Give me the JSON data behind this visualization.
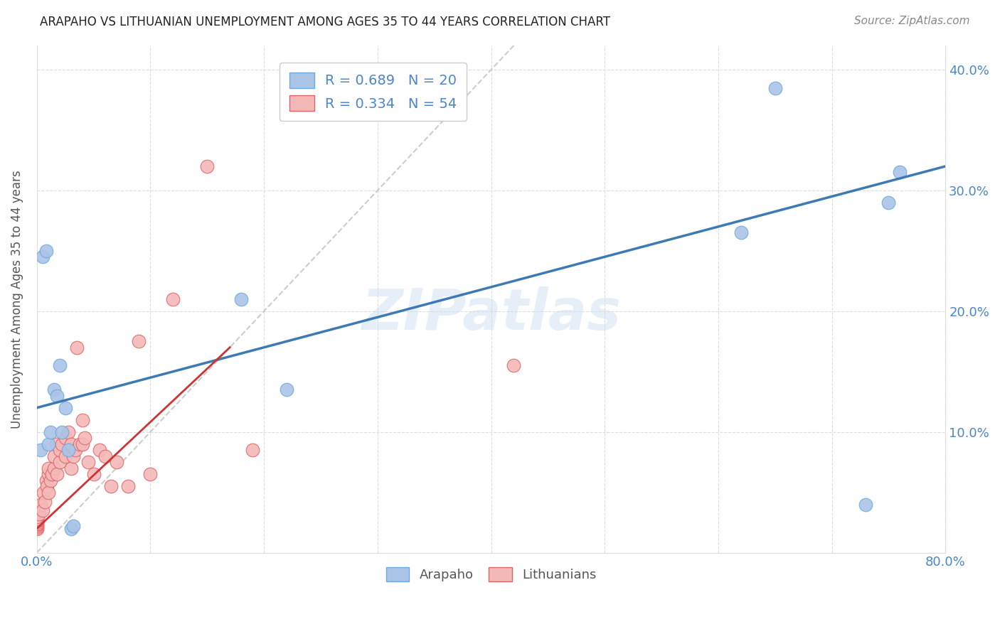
{
  "title": "ARAPAHO VS LITHUANIAN UNEMPLOYMENT AMONG AGES 35 TO 44 YEARS CORRELATION CHART",
  "source": "Source: ZipAtlas.com",
  "ylabel": "Unemployment Among Ages 35 to 44 years",
  "xlim": [
    0.0,
    0.8
  ],
  "ylim": [
    0.0,
    0.42
  ],
  "x_ticks": [
    0.0,
    0.1,
    0.2,
    0.3,
    0.4,
    0.5,
    0.6,
    0.7,
    0.8
  ],
  "y_ticks": [
    0.0,
    0.1,
    0.2,
    0.3,
    0.4
  ],
  "arapaho_color": "#aac4e8",
  "arapaho_edge_color": "#6fa8dc",
  "lithuanian_color": "#f4b8b8",
  "lithuanian_edge_color": "#e06666",
  "arapaho_line_color": "#3d7ab5",
  "lithuanian_line_color": "#cc3333",
  "diagonal_color": "#cccccc",
  "watermark": "ZIPatlas",
  "arapaho_R": 0.689,
  "arapaho_N": 20,
  "lithuanian_R": 0.334,
  "lithuanian_N": 54,
  "arapaho_x": [
    0.003,
    0.005,
    0.008,
    0.01,
    0.012,
    0.015,
    0.018,
    0.02,
    0.022,
    0.025,
    0.028,
    0.03,
    0.032,
    0.18,
    0.22,
    0.62,
    0.65,
    0.73,
    0.75,
    0.76
  ],
  "arapaho_y": [
    0.085,
    0.245,
    0.25,
    0.09,
    0.1,
    0.135,
    0.13,
    0.155,
    0.1,
    0.12,
    0.085,
    0.02,
    0.022,
    0.21,
    0.135,
    0.265,
    0.385,
    0.04,
    0.29,
    0.315
  ],
  "lithuanian_x": [
    0.0,
    0.0,
    0.0,
    0.0,
    0.0,
    0.0,
    0.0,
    0.0,
    0.0,
    0.0,
    0.002,
    0.003,
    0.005,
    0.006,
    0.007,
    0.008,
    0.009,
    0.01,
    0.01,
    0.01,
    0.012,
    0.013,
    0.015,
    0.015,
    0.017,
    0.018,
    0.02,
    0.02,
    0.022,
    0.025,
    0.025,
    0.028,
    0.03,
    0.03,
    0.032,
    0.034,
    0.035,
    0.038,
    0.04,
    0.04,
    0.042,
    0.045,
    0.05,
    0.055,
    0.06,
    0.065,
    0.07,
    0.08,
    0.09,
    0.1,
    0.12,
    0.15,
    0.19,
    0.42
  ],
  "lithuanian_y": [
    0.02,
    0.021,
    0.022,
    0.023,
    0.024,
    0.025,
    0.026,
    0.027,
    0.028,
    0.03,
    0.032,
    0.04,
    0.035,
    0.05,
    0.042,
    0.06,
    0.055,
    0.05,
    0.065,
    0.07,
    0.06,
    0.065,
    0.07,
    0.08,
    0.09,
    0.065,
    0.075,
    0.085,
    0.09,
    0.08,
    0.095,
    0.1,
    0.07,
    0.09,
    0.08,
    0.085,
    0.17,
    0.09,
    0.09,
    0.11,
    0.095,
    0.075,
    0.065,
    0.085,
    0.08,
    0.055,
    0.075,
    0.055,
    0.175,
    0.065,
    0.21,
    0.32,
    0.085,
    0.155
  ]
}
